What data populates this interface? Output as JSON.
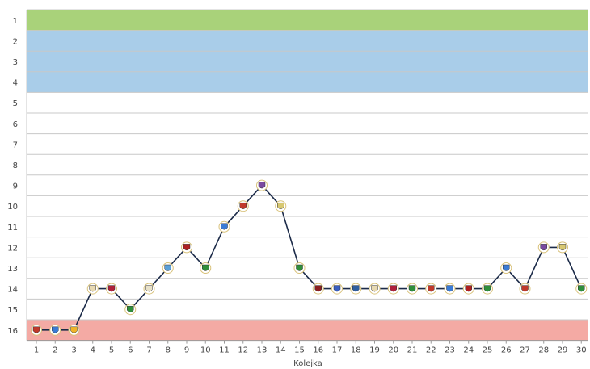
{
  "chart_data": {
    "type": "line",
    "xlabel": "Kolejka",
    "ylabel": "",
    "x": [
      1,
      2,
      3,
      4,
      5,
      6,
      7,
      8,
      9,
      10,
      11,
      12,
      13,
      14,
      15,
      16,
      17,
      18,
      19,
      20,
      21,
      22,
      23,
      24,
      25,
      26,
      27,
      28,
      29,
      30
    ],
    "y_ticks": [
      1,
      2,
      3,
      4,
      5,
      6,
      7,
      8,
      9,
      10,
      11,
      12,
      13,
      14,
      15,
      16
    ],
    "ylim": [
      1,
      16
    ],
    "y_inverted": true,
    "grid": true,
    "series": [
      {
        "values": [
          16,
          16,
          16,
          14,
          14,
          15,
          14,
          13,
          12,
          13,
          11,
          10,
          9,
          10,
          13,
          14,
          14,
          14,
          14,
          14,
          14,
          14,
          14,
          14,
          14,
          13,
          14,
          12,
          12,
          14
        ],
        "color": "#1b2a48"
      }
    ],
    "bands": [
      {
        "from": 1,
        "to": 1,
        "color": "#a9d27a"
      },
      {
        "from": 2,
        "to": 4,
        "color": "#a9cde9"
      },
      {
        "from": 16,
        "to": 16,
        "color": "#f4aaa4"
      }
    ],
    "marker_colors": [
      "#c0392b",
      "#3a7bd5",
      "#f0b429",
      "#e8d9b0",
      "#b0213a",
      "#2f8f3a",
      "#e8e1c8",
      "#5aa0d8",
      "#b02020",
      "#2f8f3a",
      "#3a7bd5",
      "#c0392b",
      "#7b4aa0",
      "#d8c870",
      "#2f8f3a",
      "#8b2020",
      "#3a5fc0",
      "#2f5fa0",
      "#e8d9b0",
      "#b0213a",
      "#2f8f3a",
      "#c0392b",
      "#3a7bd5",
      "#b02020",
      "#2f8f3a",
      "#3a7bd5",
      "#c0392b",
      "#7b4aa0",
      "#d8c870",
      "#2f8f3a"
    ]
  }
}
